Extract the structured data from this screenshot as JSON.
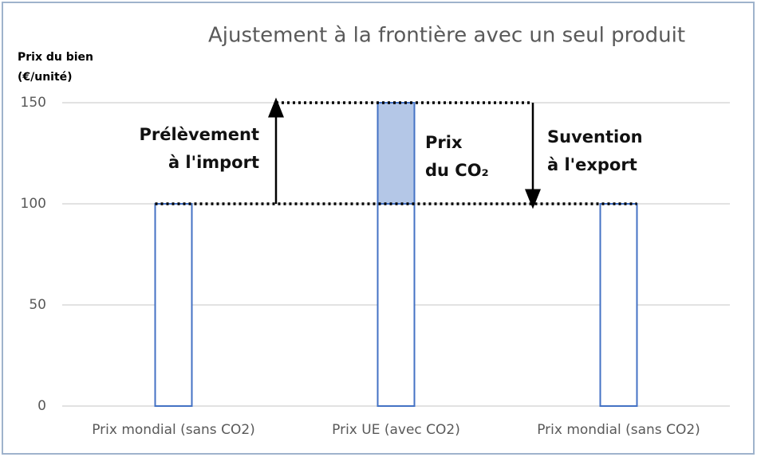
{
  "chart_data": {
    "type": "bar",
    "title": "Ajustement à la frontière avec un seul produit",
    "y_label": [
      "Prix du bien",
      "(€/unité)"
    ],
    "categories": [
      "Prix mondial (sans CO2)",
      "Prix UE (avec CO2)",
      "Prix mondial (sans CO2)"
    ],
    "stacked": true,
    "series": [
      {
        "color": "#ffffff",
        "edge_color": "#4472c4",
        "values": [
          100,
          100,
          100
        ]
      },
      {
        "color": "#b4c7e7",
        "edge_color": "#4472c4",
        "values": [
          null,
          50,
          null
        ]
      }
    ],
    "ylim": [
      0,
      150
    ],
    "yticks": [
      0,
      50,
      100,
      150
    ],
    "grid": true,
    "annotations": [
      {
        "lines": [
          "Prélèvement",
          "à l'import"
        ]
      },
      {
        "lines": [
          "Prix",
          "du CO₂"
        ]
      },
      {
        "lines": [
          "Suvention",
          "à l'export"
        ]
      }
    ]
  }
}
